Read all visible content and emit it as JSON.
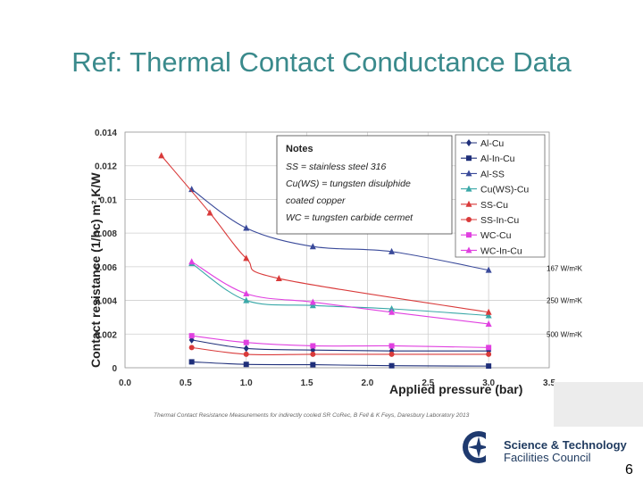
{
  "slide": {
    "title": "Ref: Thermal Contact Conductance Data",
    "citation": "Thermal Contact Resistance Measurements for indirectly cooled SR CoRec, B Fell & K Feys, Daresbury Laboratory 2013",
    "page_number": "6",
    "logo": {
      "line1": "Science & Technology",
      "line2": "Facilities Council"
    }
  },
  "notes": {
    "title": "Notes",
    "lines": [
      "SS = stainless steel 316",
      "Cu(WS) = tungsten disulphide",
      "coated copper",
      "WC = tungsten carbide cermet"
    ]
  },
  "chart_data": {
    "type": "line",
    "xlabel": "Applied pressure (bar)",
    "ylabel": "Contact resistance (1/hc)   m².K/W",
    "xlim": [
      0,
      3.5
    ],
    "ylim": [
      0,
      0.014
    ],
    "x_ticks": [
      "0.0",
      "0.5",
      "1.0",
      "1.5",
      "2.0",
      "2.5",
      "3.0",
      "3.5"
    ],
    "y_ticks": [
      "0",
      "0.002",
      "0.004",
      "0.006",
      "0.008",
      "0.01",
      "0.012",
      "0.014"
    ],
    "grid": true,
    "legend_placement": "top-right",
    "annotations": [
      {
        "text": "167 W/m²K",
        "y": 0.0059
      },
      {
        "text": "250 W/m²K",
        "y": 0.004
      },
      {
        "text": "500 W/m²K",
        "y": 0.002
      }
    ],
    "series": [
      {
        "name": "Al-Cu",
        "color": "#1f2f7a",
        "marker": "diamond",
        "points": [
          [
            0.55,
            0.00165
          ],
          [
            1.0,
            0.00115
          ],
          [
            1.55,
            0.00105
          ],
          [
            2.2,
            0.001
          ],
          [
            3.0,
            0.001
          ]
        ]
      },
      {
        "name": "Al-In-Cu",
        "color": "#1f2f7a",
        "marker": "square",
        "points": [
          [
            0.55,
            0.00035
          ],
          [
            1.0,
            0.0002
          ],
          [
            1.55,
            0.00018
          ],
          [
            2.2,
            0.00012
          ],
          [
            3.0,
            0.0001
          ]
        ]
      },
      {
        "name": "Al-SS",
        "color": "#3a4a9a",
        "marker": "triangle",
        "points": [
          [
            0.55,
            0.0106
          ],
          [
            1.0,
            0.0083
          ],
          [
            1.55,
            0.0072
          ],
          [
            2.2,
            0.0069
          ],
          [
            3.0,
            0.0058
          ]
        ]
      },
      {
        "name": "Cu(WS)-Cu",
        "color": "#3aa8a8",
        "marker": "triangle",
        "points": [
          [
            0.55,
            0.0062
          ],
          [
            1.0,
            0.004
          ],
          [
            1.55,
            0.0037
          ],
          [
            2.2,
            0.0035
          ],
          [
            3.0,
            0.0031
          ]
        ]
      },
      {
        "name": "SS-Cu",
        "color": "#d93a3a",
        "marker": "triangle",
        "points": [
          [
            0.3,
            0.0126
          ],
          [
            0.7,
            0.0092
          ],
          [
            1.0,
            0.0065
          ],
          [
            1.27,
            0.0053
          ],
          [
            3.0,
            0.0033
          ]
        ]
      },
      {
        "name": "SS-In-Cu",
        "color": "#d93a3a",
        "marker": "circle",
        "points": [
          [
            0.55,
            0.0012
          ],
          [
            1.0,
            0.0008
          ],
          [
            1.55,
            0.0008
          ],
          [
            2.2,
            0.0008
          ],
          [
            3.0,
            0.0008
          ]
        ]
      },
      {
        "name": "WC-Cu",
        "color": "#e040e0",
        "marker": "square",
        "points": [
          [
            0.55,
            0.0019
          ],
          [
            1.0,
            0.0015
          ],
          [
            1.55,
            0.0013
          ],
          [
            2.2,
            0.0013
          ],
          [
            3.0,
            0.0012
          ]
        ]
      },
      {
        "name": "WC-In-Cu",
        "color": "#e040e0",
        "marker": "triangle",
        "points": [
          [
            0.55,
            0.0063
          ],
          [
            1.0,
            0.0044
          ],
          [
            1.55,
            0.0039
          ],
          [
            2.2,
            0.0033
          ],
          [
            3.0,
            0.0026
          ]
        ]
      }
    ]
  }
}
